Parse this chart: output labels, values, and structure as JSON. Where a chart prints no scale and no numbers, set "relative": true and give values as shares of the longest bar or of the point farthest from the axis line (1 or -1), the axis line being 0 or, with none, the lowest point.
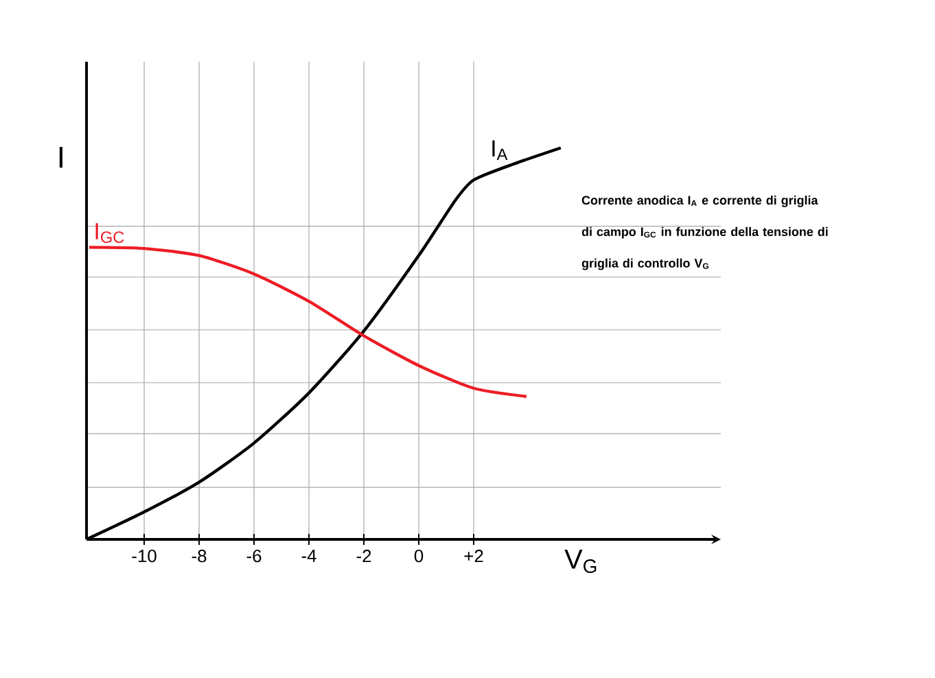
{
  "chart_data": {
    "type": "line",
    "relative": true,
    "xlabel": "V$_{G}$",
    "ylabel": "I",
    "xlim": [
      -12.1,
      11
    ],
    "xticks": [
      -10,
      -8,
      -6,
      -4,
      -2,
      0,
      {
        "value": 2,
        "label": "+2"
      }
    ],
    "grid": true,
    "series": [
      {
        "name": "I$_{A}$",
        "color": "#000000",
        "x": [
          -12.1,
          -10,
          -8,
          -6,
          -4,
          -2,
          0,
          1.33,
          2,
          3.42,
          5.17
        ],
        "values": [
          0,
          0.07,
          0.146,
          0.246,
          0.374,
          0.532,
          0.725,
          0.866,
          0.918,
          0.958,
          1
        ]
      },
      {
        "name": "I$_{GC}$",
        "color": "#ed1c24",
        "x": [
          -12,
          -10,
          -8,
          -6,
          -4,
          -2,
          0,
          2,
          3.92
        ],
        "values": [
          0.746,
          0.743,
          0.725,
          0.678,
          0.608,
          0.52,
          0.444,
          0.386,
          0.365
        ]
      }
    ],
    "annotations": [
      "Corrente anodica I$_{A}$ e corrente di griglia di campo I$_{GC}$ in funzione della tensione di griglia di controllo V$_{G}$"
    ]
  }
}
